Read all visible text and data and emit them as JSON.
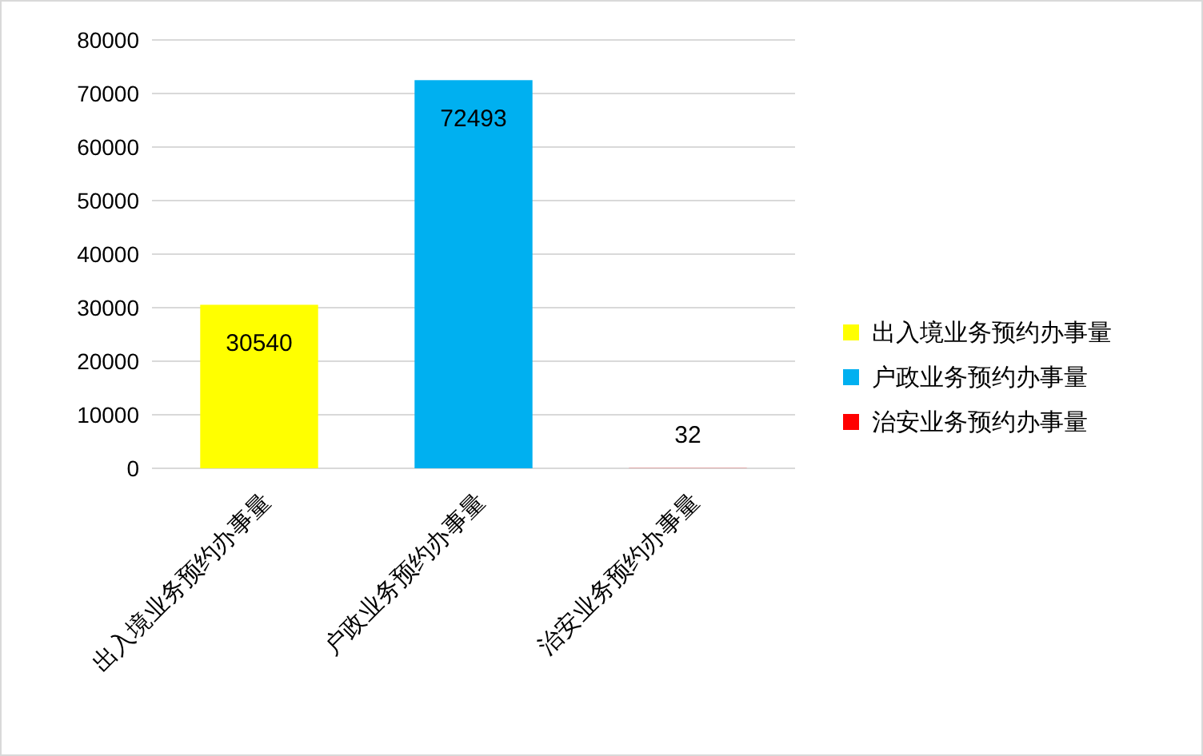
{
  "chart_data": {
    "type": "bar",
    "categories": [
      "出入境业务预约办事量",
      "户政业务预约办事量",
      "治安业务预约办事量"
    ],
    "series": [
      {
        "name": "出入境业务预约办事量",
        "color": "#ffff00",
        "values": [
          30540,
          null,
          null
        ]
      },
      {
        "name": "户政业务预约办事量",
        "color": "#00b0f0",
        "values": [
          null,
          72493,
          null
        ]
      },
      {
        "name": "治安业务预约办事量",
        "color": "#ff0000",
        "values": [
          null,
          null,
          32
        ]
      }
    ],
    "ylim": [
      0,
      80000
    ],
    "yticks": [
      0,
      10000,
      20000,
      30000,
      40000,
      50000,
      60000,
      70000,
      80000
    ],
    "grid": "y",
    "legend": "right",
    "data_labels": true
  }
}
